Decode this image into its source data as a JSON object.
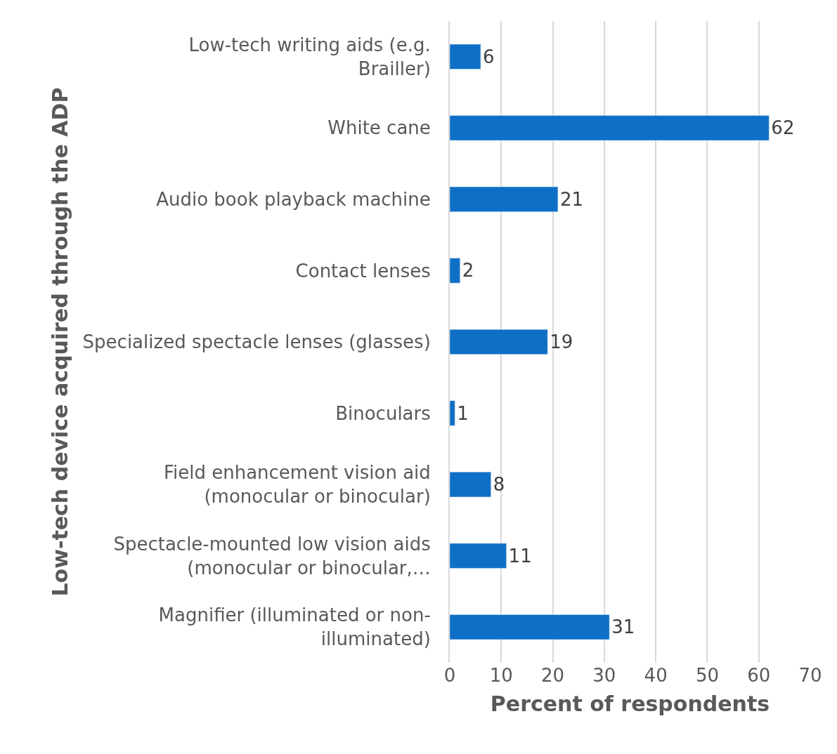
{
  "chart_data": {
    "type": "bar",
    "orientation": "horizontal",
    "xlabel": "Percent of respondents",
    "ylabel": "Low-tech device acquired through the ADP",
    "categories": [
      "Low-tech writing aids (e.g.\nBrailler)",
      "White cane",
      "Audio book playback machine",
      "Contact lenses",
      "Specialized spectacle lenses (glasses)",
      "Binoculars",
      "Field enhancement vision aid\n(monocular or binocular)",
      "Spectacle-mounted low vision aids\n(monocular or binocular,…",
      "Magnifier (illuminated or non-\nilluminated)"
    ],
    "values": [
      6,
      62,
      21,
      2,
      19,
      1,
      8,
      11,
      31
    ],
    "color": "#0f6fc6",
    "xlim": [
      0,
      70
    ],
    "xticks": [
      0,
      10,
      20,
      30,
      40,
      50,
      60,
      70
    ],
    "grid": "x",
    "data_labels": true
  }
}
